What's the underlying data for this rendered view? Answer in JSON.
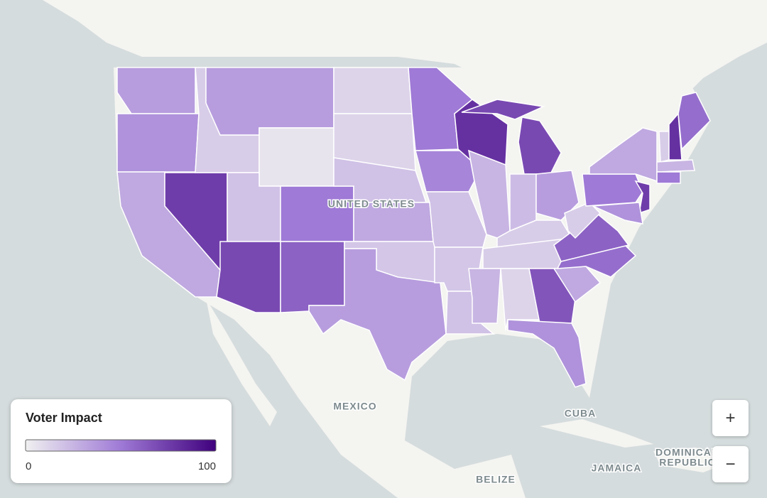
{
  "map": {
    "labels": [
      "UNITED STATES",
      "MEXICO",
      "CUBA",
      "DOMINICAN",
      "REPUBLIC",
      "JAMAICA",
      "BELIZE"
    ],
    "legend": {
      "title": "Voter Impact",
      "ticks": [
        0,
        100
      ],
      "colors": [
        "#f0f0f0",
        "#9f7ad6",
        "#3f007d"
      ]
    },
    "regions": [
      35,
      40,
      30,
      75,
      15,
      35,
      5,
      20,
      70,
      50,
      60,
      12,
      12,
      20,
      30,
      18,
      35,
      50,
      45,
      20,
      18,
      20,
      80,
      25,
      70,
      22,
      35,
      15,
      15,
      25,
      12,
      65,
      40,
      30,
      55,
      60,
      15,
      50,
      30,
      75,
      40,
      15,
      80,
      55,
      25,
      50
    ]
  },
  "controls": {
    "zoom_in": "+",
    "zoom_out": "−"
  }
}
